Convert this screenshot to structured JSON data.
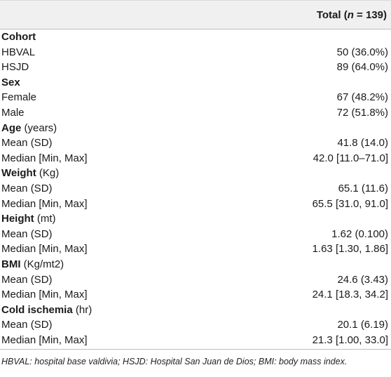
{
  "header": {
    "total_prefix": "Total (",
    "n_symbol": "n",
    "total_suffix": " = 139)"
  },
  "rows": [
    {
      "type": "section",
      "label": "Cohort",
      "unit": ""
    },
    {
      "type": "data",
      "label": "HBVAL",
      "value": "50 (36.0%)"
    },
    {
      "type": "data",
      "label": "HSJD",
      "value": "89 (64.0%)"
    },
    {
      "type": "section",
      "label": "Sex",
      "unit": ""
    },
    {
      "type": "data",
      "label": "Female",
      "value": "67 (48.2%)"
    },
    {
      "type": "data",
      "label": "Male",
      "value": "72 (51.8%)"
    },
    {
      "type": "section",
      "label": "Age",
      "unit": " (years)"
    },
    {
      "type": "data",
      "label": "Mean (SD)",
      "value": "41.8 (14.0)"
    },
    {
      "type": "data",
      "label": "Median [Min, Max]",
      "value": "42.0 [11.0–71.0]"
    },
    {
      "type": "section",
      "label": "Weight",
      "unit": " (Kg)"
    },
    {
      "type": "data",
      "label": "Mean (SD)",
      "value": "65.1 (11.6)"
    },
    {
      "type": "data",
      "label": "Median [Min, Max]",
      "value": "65.5 [31.0, 91.0]"
    },
    {
      "type": "section",
      "label": "Height",
      "unit": " (mt)"
    },
    {
      "type": "data",
      "label": "Mean (SD)",
      "value": "1.62 (0.100)"
    },
    {
      "type": "data",
      "label": "Median [Min, Max]",
      "value": "1.63 [1.30, 1.86]"
    },
    {
      "type": "section",
      "label": "BMI",
      "unit": " (Kg/mt2)"
    },
    {
      "type": "data",
      "label": "Mean (SD)",
      "value": "24.6 (3.43)"
    },
    {
      "type": "data",
      "label": "Median [Min, Max]",
      "value": "24.1 [18.3, 34.2]"
    },
    {
      "type": "section",
      "label": "Cold ischemia",
      "unit": " (hr)"
    },
    {
      "type": "data",
      "label": "Mean (SD)",
      "value": "20.1 (6.19)"
    },
    {
      "type": "data",
      "label": "Median [Min, Max]",
      "value": "21.3 [1.00, 33.0]"
    }
  ],
  "footnote": "HBVAL: hospital base valdivia; HSJD: Hospital San Juan de Dios; BMI: body mass index."
}
